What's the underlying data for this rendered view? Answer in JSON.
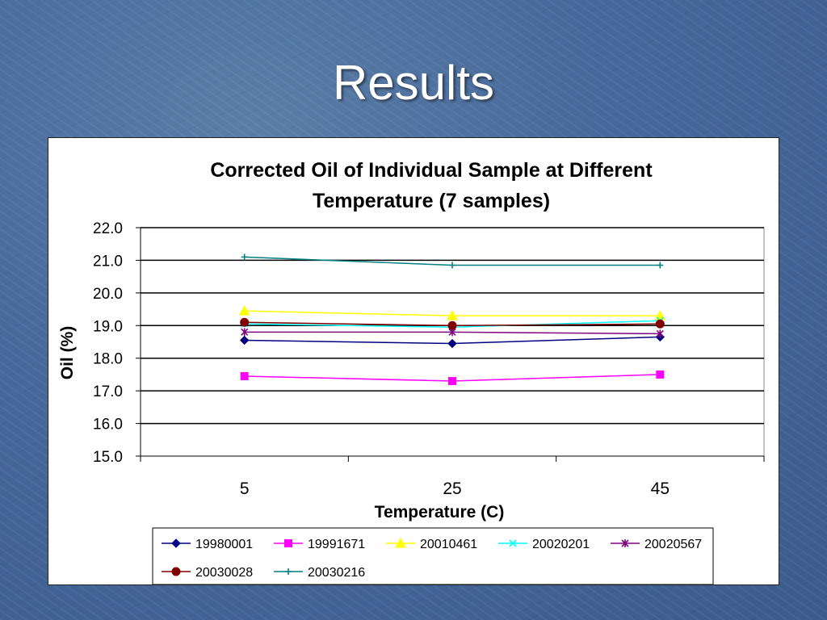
{
  "slide": {
    "title": "Results"
  },
  "chart_data": {
    "type": "line",
    "title_lines": [
      "Corrected Oil of Individual Sample at Different",
      "Temperature (7 samples)"
    ],
    "xlabel": "Temperature (C)",
    "ylabel": "Oil (%)",
    "categories": [
      "5",
      "25",
      "45"
    ],
    "ylim": [
      15.0,
      22.0
    ],
    "yticks": [
      "15.0",
      "16.0",
      "17.0",
      "18.0",
      "19.0",
      "20.0",
      "21.0",
      "22.0"
    ],
    "grid": true,
    "legend_position": "bottom",
    "series": [
      {
        "name": "19980001",
        "color": "#000080",
        "marker": "diamond",
        "values": [
          18.55,
          18.45,
          18.65
        ]
      },
      {
        "name": "19991671",
        "color": "#ff00ff",
        "marker": "square",
        "values": [
          17.45,
          17.3,
          17.5
        ]
      },
      {
        "name": "20010461",
        "color": "#ffff00",
        "marker": "triangle",
        "values": [
          19.45,
          19.3,
          19.3
        ]
      },
      {
        "name": "20020201",
        "color": "#00ffff",
        "marker": "x",
        "values": [
          19.05,
          18.95,
          19.15
        ]
      },
      {
        "name": "20020567",
        "color": "#800080",
        "marker": "star",
        "values": [
          18.8,
          18.8,
          18.75
        ]
      },
      {
        "name": "20030028",
        "color": "#800000",
        "marker": "circle",
        "values": [
          19.1,
          19.0,
          19.05
        ]
      },
      {
        "name": "20030216",
        "color": "#008080",
        "marker": "plus",
        "values": [
          21.1,
          20.85,
          20.85
        ]
      }
    ]
  }
}
